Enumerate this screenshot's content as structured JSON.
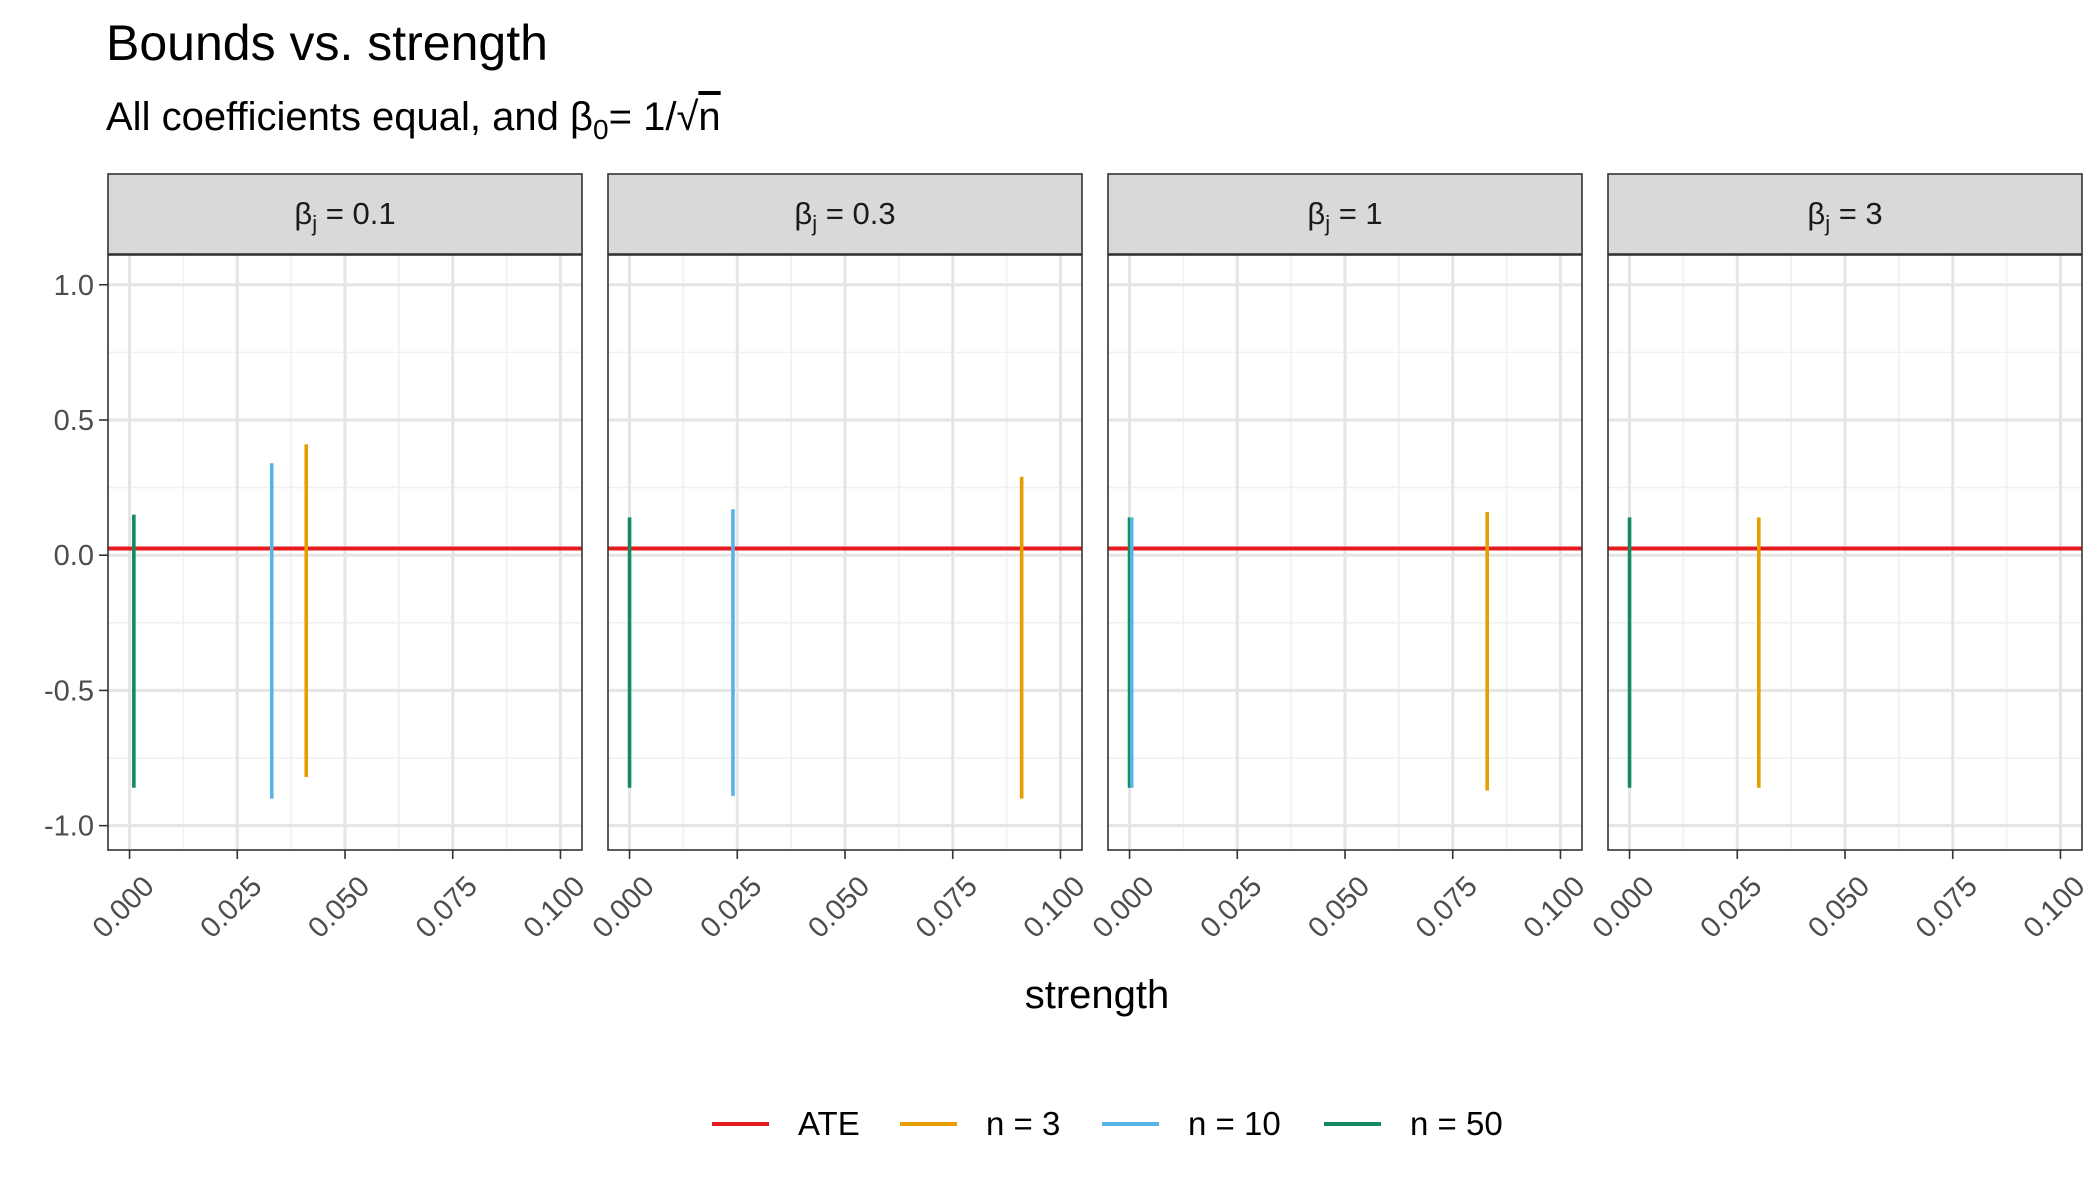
{
  "chart_data": {
    "type": "facet_range",
    "title": "Bounds vs. strength",
    "subtitle": {
      "prefix": "All coefficients equal, and ",
      "beta": "β",
      "sub": "0",
      "equals": "= 1/",
      "sqrt": "√",
      "n": "n"
    },
    "xlabel": "strength",
    "ylabel": "",
    "xlim": [
      -0.005,
      0.105
    ],
    "ylim": [
      -1.09,
      1.11
    ],
    "x_ticks": [
      0.0,
      0.025,
      0.05,
      0.075,
      0.1
    ],
    "x_tick_labels": [
      "0.000",
      "0.025",
      "0.050",
      "0.075",
      "0.100"
    ],
    "y_ticks": [
      1.0,
      0.5,
      0.0,
      -0.5,
      -1.0
    ],
    "y_tick_labels": [
      "1.0",
      "0.5",
      "0.0",
      "-0.5",
      "-1.0"
    ],
    "grid": true,
    "ate": 0.025,
    "legend": {
      "position": "bottom",
      "entries": [
        {
          "label": "ATE",
          "color": "#e41a1c"
        },
        {
          "label": "n = 3",
          "color": "#e69f00"
        },
        {
          "label": "n = 10",
          "color": "#56b4e9"
        },
        {
          "label": "n = 50",
          "color": "#148a60"
        }
      ]
    },
    "series_colors": {
      "n = 3": "#e69f00",
      "n = 10": "#56b4e9",
      "n = 50": "#148a60"
    },
    "panels": [
      {
        "strip": {
          "beta": "β",
          "sub": "j",
          "value": " = 0.1"
        },
        "ranges": [
          {
            "series": "n = 50",
            "x": 0.001,
            "ymin": -0.86,
            "ymax": 0.15
          },
          {
            "series": "n = 10",
            "x": 0.033,
            "ymin": -0.9,
            "ymax": 0.34
          },
          {
            "series": "n = 3",
            "x": 0.041,
            "ymin": -0.82,
            "ymax": 0.41
          }
        ]
      },
      {
        "strip": {
          "beta": "β",
          "sub": "j",
          "value": " = 0.3"
        },
        "ranges": [
          {
            "series": "n = 50",
            "x": 0.0,
            "ymin": -0.86,
            "ymax": 0.14
          },
          {
            "series": "n = 10",
            "x": 0.024,
            "ymin": -0.89,
            "ymax": 0.17
          },
          {
            "series": "n = 3",
            "x": 0.091,
            "ymin": -0.9,
            "ymax": 0.29
          }
        ]
      },
      {
        "strip": {
          "beta": "β",
          "sub": "j",
          "value": " = 1"
        },
        "ranges": [
          {
            "series": "n = 50",
            "x": 0.0,
            "ymin": -0.86,
            "ymax": 0.14
          },
          {
            "series": "n = 10",
            "x": 0.0005,
            "ymin": -0.86,
            "ymax": 0.14
          },
          {
            "series": "n = 3",
            "x": 0.083,
            "ymin": -0.87,
            "ymax": 0.16
          }
        ]
      },
      {
        "strip": {
          "beta": "β",
          "sub": "j",
          "value": " = 3"
        },
        "ranges": [
          {
            "series": "n = 50",
            "x": 0.0,
            "ymin": -0.86,
            "ymax": 0.14
          },
          {
            "series": "n = 3",
            "x": 0.03,
            "ymin": -0.86,
            "ymax": 0.14
          }
        ]
      }
    ]
  }
}
